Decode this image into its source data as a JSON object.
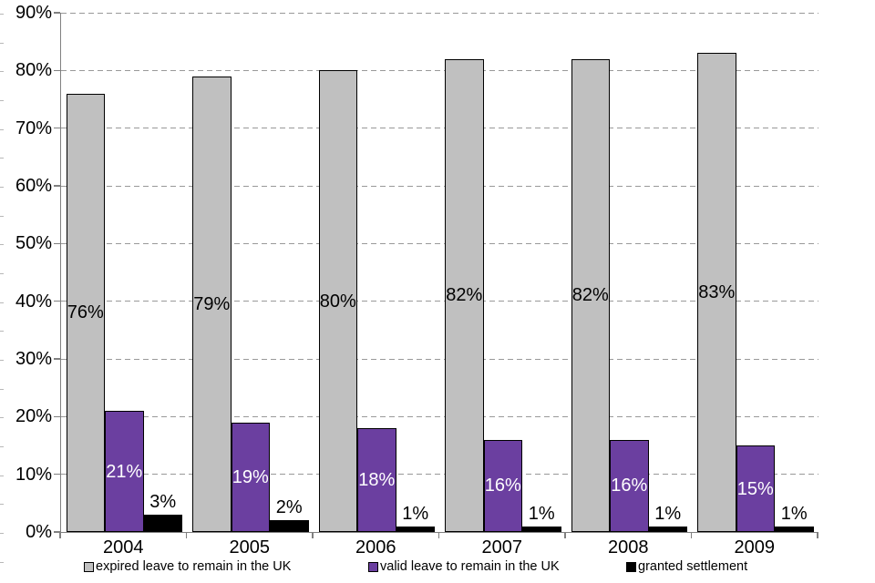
{
  "chart_data": {
    "type": "bar",
    "title": "",
    "categories": [
      "2004",
      "2005",
      "2006",
      "2007",
      "2008",
      "2009"
    ],
    "series": [
      {
        "name": "expired leave to remain in the UK",
        "color": "#C0C0C0",
        "label_color": "#000000",
        "label_placement": "inside-center",
        "values": [
          76,
          79,
          80,
          82,
          82,
          83
        ]
      },
      {
        "name": "valid leave to remain in the UK",
        "color": "#6B3FA0",
        "label_color": "#FFFFFF",
        "label_placement": "inside-center",
        "values": [
          21,
          19,
          18,
          16,
          16,
          15
        ]
      },
      {
        "name": "granted settlement",
        "color": "#000000",
        "label_color": "#000000",
        "label_placement": "outside-top",
        "values": [
          3,
          2,
          1,
          1,
          1,
          1
        ]
      }
    ],
    "value_suffix": "%",
    "ylim": [
      0,
      90
    ],
    "yticks": [
      0,
      10,
      20,
      30,
      40,
      50,
      60,
      70,
      80,
      90
    ],
    "ytick_labels": [
      "0%",
      "10%",
      "20%",
      "30%",
      "40%",
      "50%",
      "60%",
      "70%",
      "80%",
      "90%"
    ],
    "grid": "horizontal-dashed",
    "legend_position": "bottom",
    "xlabel": "",
    "ylabel": ""
  },
  "colors": {
    "axis": "#808080",
    "gridline": "#999999",
    "bar_border": "#000000",
    "background": "#FFFFFF"
  }
}
